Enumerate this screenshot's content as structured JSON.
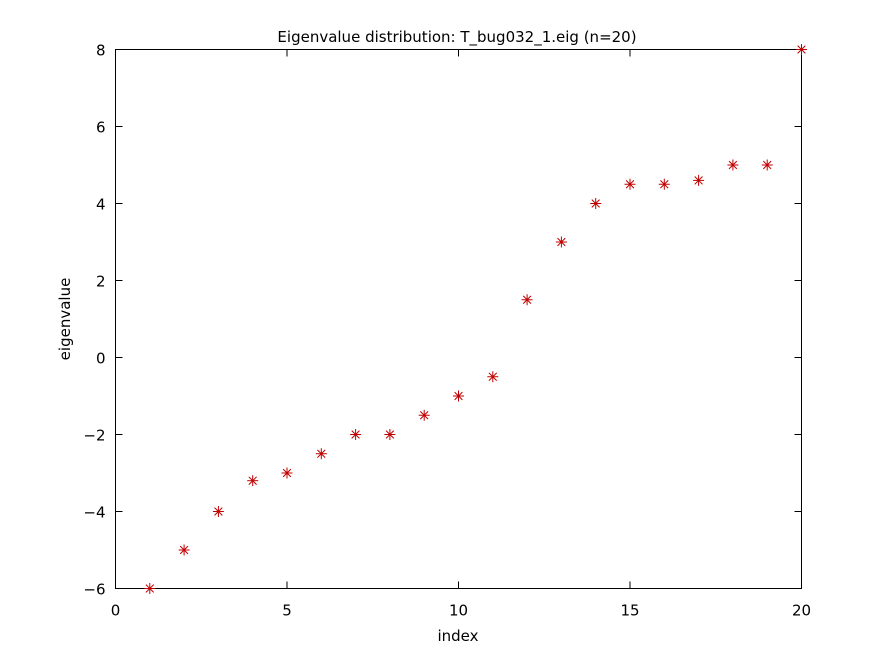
{
  "chart_data": {
    "type": "scatter",
    "title": "Eigenvalue distribution: T_bug032_1.eig (n=20)",
    "xlabel": "index",
    "ylabel": "eigenvalue",
    "xlim": [
      0,
      20
    ],
    "ylim": [
      -6,
      8
    ],
    "xticks": [
      0,
      5,
      10,
      15,
      20
    ],
    "yticks": [
      -6,
      -4,
      -2,
      0,
      2,
      4,
      6,
      8
    ],
    "grid": false,
    "marker": "asterisk",
    "marker_color": "#c00000",
    "series": [
      {
        "x": [
          1,
          2,
          3,
          4,
          5,
          6,
          7,
          8,
          9,
          10,
          11,
          12,
          13,
          14,
          15,
          16,
          17,
          18,
          19,
          20
        ],
        "values": [
          -6,
          -5,
          -4,
          -3.2,
          -3,
          -2.5,
          -2,
          -2,
          -1.5,
          -1,
          -0.5,
          1.5,
          3,
          4,
          4.5,
          4.5,
          4.6,
          5,
          5,
          8
        ]
      }
    ]
  }
}
